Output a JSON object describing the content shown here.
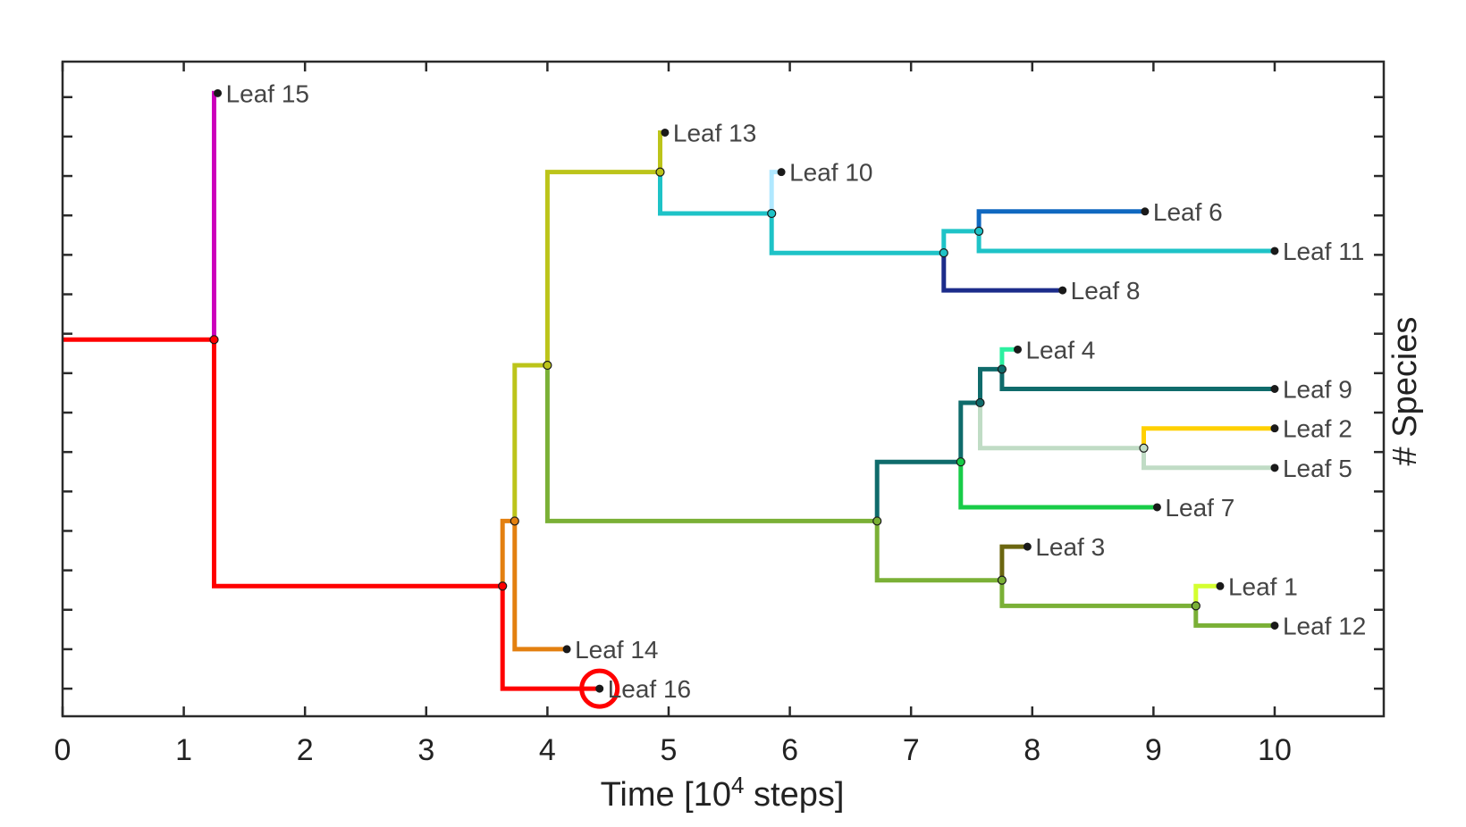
{
  "chart_data": {
    "type": "line",
    "subtype": "phylogenetic-tree",
    "xlabel": "Time [10^4 steps]",
    "xlabel_main": "Time [10",
    "xlabel_sup": "4",
    "xlabel_tail": " steps]",
    "ylabel": "# Species",
    "xlim": [
      0,
      10.9
    ],
    "ylim": [
      0.3,
      16.9
    ],
    "xticks": [
      0,
      1,
      2,
      3,
      4,
      5,
      6,
      7,
      8,
      9,
      10
    ],
    "xtick_labels": [
      "0",
      "1",
      "2",
      "3",
      "4",
      "5",
      "6",
      "7",
      "8",
      "9",
      "10"
    ],
    "yticks": [
      1,
      2,
      3,
      4,
      5,
      6,
      7,
      8,
      9,
      10,
      11,
      12,
      13,
      14,
      15,
      16
    ],
    "segments": [
      {
        "color": "#ff0000",
        "points": [
          [
            0,
            9.85
          ],
          [
            1.25,
            9.85
          ]
        ]
      },
      {
        "color": "#cc00bb",
        "points": [
          [
            1.25,
            9.85
          ],
          [
            1.25,
            16.1
          ],
          [
            1.28,
            16.1
          ]
        ]
      },
      {
        "color": "#ff0000",
        "points": [
          [
            1.25,
            9.85
          ],
          [
            1.25,
            3.6
          ],
          [
            3.63,
            3.6
          ]
        ]
      },
      {
        "color": "#ff0000",
        "points": [
          [
            3.63,
            3.6
          ],
          [
            3.63,
            1.0
          ],
          [
            4.43,
            1.0
          ]
        ]
      },
      {
        "color": "#e38010",
        "points": [
          [
            3.63,
            3.6
          ],
          [
            3.63,
            5.25
          ],
          [
            3.73,
            5.25
          ]
        ]
      },
      {
        "color": "#e38010",
        "points": [
          [
            3.73,
            5.25
          ],
          [
            3.73,
            2.0
          ],
          [
            4.16,
            2.0
          ]
        ]
      },
      {
        "color": "#bcc41a",
        "points": [
          [
            3.73,
            5.25
          ],
          [
            3.73,
            9.2
          ],
          [
            4.0,
            9.2
          ]
        ]
      },
      {
        "color": "#bcc41a",
        "points": [
          [
            4.0,
            9.2
          ],
          [
            4.0,
            14.1
          ],
          [
            4.93,
            14.1
          ]
        ]
      },
      {
        "color": "#bcc41a",
        "points": [
          [
            4.93,
            14.1
          ],
          [
            4.93,
            15.1
          ],
          [
            4.97,
            15.1
          ]
        ]
      },
      {
        "color": "#1ec3c7",
        "points": [
          [
            4.93,
            14.1
          ],
          [
            4.93,
            13.05
          ],
          [
            5.85,
            13.05
          ]
        ]
      },
      {
        "color": "#b0e8ff",
        "points": [
          [
            5.85,
            13.05
          ],
          [
            5.85,
            14.1
          ],
          [
            5.93,
            14.1
          ]
        ]
      },
      {
        "color": "#1ec3c7",
        "points": [
          [
            5.85,
            13.05
          ],
          [
            5.85,
            12.05
          ],
          [
            7.27,
            12.05
          ]
        ]
      },
      {
        "color": "#1ec3c7",
        "points": [
          [
            7.27,
            12.05
          ],
          [
            7.27,
            12.6
          ],
          [
            7.56,
            12.6
          ]
        ]
      },
      {
        "color": "#1068c0",
        "points": [
          [
            7.56,
            12.6
          ],
          [
            7.56,
            13.1
          ],
          [
            8.93,
            13.1
          ]
        ]
      },
      {
        "color": "#1ec3c7",
        "points": [
          [
            7.56,
            12.6
          ],
          [
            7.56,
            12.1
          ],
          [
            10.0,
            12.1
          ]
        ]
      },
      {
        "color": "#1c2c8a",
        "points": [
          [
            7.27,
            12.05
          ],
          [
            7.27,
            11.1
          ],
          [
            8.25,
            11.1
          ]
        ]
      },
      {
        "color": "#7ab036",
        "points": [
          [
            4.0,
            9.2
          ],
          [
            4.0,
            5.25
          ],
          [
            6.72,
            5.25
          ]
        ]
      },
      {
        "color": "#0f6b6b",
        "points": [
          [
            6.72,
            5.25
          ],
          [
            6.72,
            6.75
          ],
          [
            7.41,
            6.75
          ]
        ]
      },
      {
        "color": "#0f6b6b",
        "points": [
          [
            7.41,
            6.75
          ],
          [
            7.41,
            8.25
          ],
          [
            7.57,
            8.25
          ]
        ]
      },
      {
        "color": "#0f6b6b",
        "points": [
          [
            7.57,
            8.25
          ],
          [
            7.57,
            9.1
          ],
          [
            7.75,
            9.1
          ]
        ]
      },
      {
        "color": "#2cf0a0",
        "points": [
          [
            7.75,
            9.1
          ],
          [
            7.75,
            9.6
          ],
          [
            7.88,
            9.6
          ]
        ]
      },
      {
        "color": "#0f6b6b",
        "points": [
          [
            7.75,
            9.1
          ],
          [
            7.75,
            8.6
          ],
          [
            10.0,
            8.6
          ]
        ]
      },
      {
        "color": "#c0dcc5",
        "points": [
          [
            7.57,
            8.25
          ],
          [
            7.57,
            7.1
          ],
          [
            8.92,
            7.1
          ]
        ]
      },
      {
        "color": "#ffd000",
        "points": [
          [
            8.92,
            7.1
          ],
          [
            8.92,
            7.6
          ],
          [
            10.0,
            7.6
          ]
        ]
      },
      {
        "color": "#c0dcc5",
        "points": [
          [
            8.92,
            7.1
          ],
          [
            8.92,
            6.6
          ],
          [
            10.0,
            6.6
          ]
        ]
      },
      {
        "color": "#18cc48",
        "points": [
          [
            7.41,
            6.75
          ],
          [
            7.41,
            5.6
          ],
          [
            9.03,
            5.6
          ]
        ]
      },
      {
        "color": "#7ab036",
        "points": [
          [
            6.72,
            5.25
          ],
          [
            6.72,
            3.75
          ],
          [
            7.75,
            3.75
          ]
        ]
      },
      {
        "color": "#6b6610",
        "points": [
          [
            7.75,
            3.75
          ],
          [
            7.75,
            4.6
          ],
          [
            7.96,
            4.6
          ]
        ]
      },
      {
        "color": "#7ab036",
        "points": [
          [
            7.75,
            3.75
          ],
          [
            7.75,
            3.1
          ],
          [
            9.35,
            3.1
          ]
        ]
      },
      {
        "color": "#d4ff30",
        "points": [
          [
            9.35,
            3.1
          ],
          [
            9.35,
            3.6
          ],
          [
            9.55,
            3.6
          ]
        ]
      },
      {
        "color": "#7ab036",
        "points": [
          [
            9.35,
            3.1
          ],
          [
            9.35,
            2.6
          ],
          [
            10.0,
            2.6
          ]
        ]
      }
    ],
    "nodes": [
      {
        "x": 1.25,
        "y": 9.85,
        "color": "#ff0000"
      },
      {
        "x": 3.63,
        "y": 3.6,
        "color": "#ff0000"
      },
      {
        "x": 3.73,
        "y": 5.25,
        "color": "#e38010"
      },
      {
        "x": 4.0,
        "y": 9.2,
        "color": "#bcc41a"
      },
      {
        "x": 4.93,
        "y": 14.1,
        "color": "#bcc41a"
      },
      {
        "x": 5.85,
        "y": 13.05,
        "color": "#1ec3c7"
      },
      {
        "x": 7.27,
        "y": 12.05,
        "color": "#1ec3c7"
      },
      {
        "x": 7.56,
        "y": 12.6,
        "color": "#1ec3c7"
      },
      {
        "x": 6.72,
        "y": 5.25,
        "color": "#7ab036"
      },
      {
        "x": 7.41,
        "y": 6.75,
        "color": "#18cc48"
      },
      {
        "x": 7.57,
        "y": 8.25,
        "color": "#0f6b6b"
      },
      {
        "x": 7.75,
        "y": 9.1,
        "color": "#0f6b6b"
      },
      {
        "x": 8.92,
        "y": 7.1,
        "color": "#c0dcc5"
      },
      {
        "x": 7.75,
        "y": 3.75,
        "color": "#7ab036"
      },
      {
        "x": 9.35,
        "y": 3.1,
        "color": "#7ab036"
      }
    ],
    "leaves": [
      {
        "label": "Leaf 15",
        "x": 1.28,
        "y": 16.1
      },
      {
        "label": "Leaf 13",
        "x": 4.97,
        "y": 15.1
      },
      {
        "label": "Leaf 10",
        "x": 5.93,
        "y": 14.1
      },
      {
        "label": "Leaf 6",
        "x": 8.93,
        "y": 13.1
      },
      {
        "label": "Leaf 11",
        "x": 10.0,
        "y": 12.1
      },
      {
        "label": "Leaf 8",
        "x": 8.25,
        "y": 11.1
      },
      {
        "label": "Leaf 4",
        "x": 7.88,
        "y": 9.6
      },
      {
        "label": "Leaf 9",
        "x": 10.0,
        "y": 8.6
      },
      {
        "label": "Leaf 2",
        "x": 10.0,
        "y": 7.6
      },
      {
        "label": "Leaf 5",
        "x": 10.0,
        "y": 6.6
      },
      {
        "label": "Leaf 7",
        "x": 9.03,
        "y": 5.6
      },
      {
        "label": "Leaf 3",
        "x": 7.96,
        "y": 4.6
      },
      {
        "label": "Leaf 1",
        "x": 9.55,
        "y": 3.6
      },
      {
        "label": "Leaf 12",
        "x": 10.0,
        "y": 2.6
      },
      {
        "label": "Leaf 14",
        "x": 4.16,
        "y": 2.0
      },
      {
        "label": "Leaf 16",
        "x": 4.43,
        "y": 1.0
      }
    ],
    "highlight": {
      "label": "Leaf 16",
      "x": 4.43,
      "y": 1.0,
      "color": "#ff0000"
    }
  }
}
